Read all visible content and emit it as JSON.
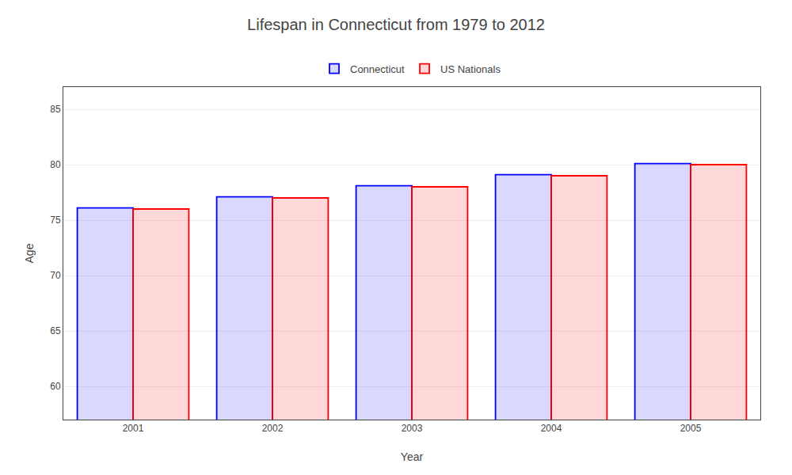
{
  "chart_data": {
    "type": "bar",
    "title": "Lifespan in Connecticut from 1979 to 2012",
    "x_label": "Year",
    "y_label": "Age",
    "categories": [
      "2001",
      "2002",
      "2003",
      "2004",
      "2005"
    ],
    "series": [
      {
        "name": "Connecticut",
        "color": "#0000ff",
        "values": [
          76.1,
          77.1,
          78.1,
          79.1,
          80.1
        ]
      },
      {
        "name": "US Nationals",
        "color": "#ff0000",
        "values": [
          76.0,
          77.0,
          78.0,
          79.0,
          80.0
        ]
      }
    ],
    "ylim": [
      57,
      87
    ],
    "yticks": [
      60,
      65,
      70,
      75,
      80,
      85
    ],
    "grid": true,
    "legend": "top"
  }
}
